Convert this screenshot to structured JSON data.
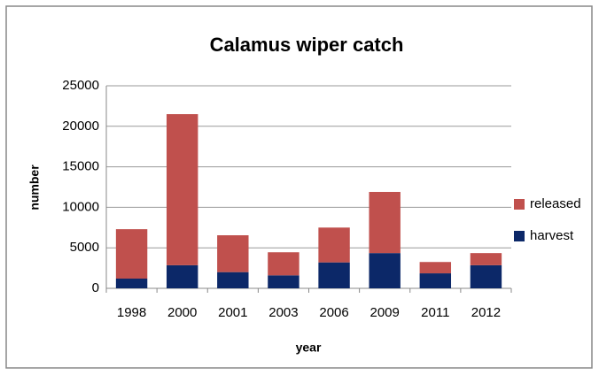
{
  "chart_data": {
    "type": "stacked_bar",
    "title": "Calamus wiper catch",
    "x_label": "year",
    "y_label": "number",
    "categories": [
      "1998",
      "2000",
      "2001",
      "2003",
      "2006",
      "2009",
      "2011",
      "2012"
    ],
    "series": [
      {
        "name": "harvest",
        "color": "#0c2868",
        "values": [
          1200,
          2850,
          2000,
          1600,
          3200,
          4350,
          1850,
          2850
        ]
      },
      {
        "name": "released",
        "color": "#c0504d",
        "values": [
          6100,
          18650,
          4550,
          2850,
          4300,
          7550,
          1400,
          1500
        ]
      }
    ],
    "ylim": [
      0,
      25000
    ],
    "yticks": [
      0,
      5000,
      10000,
      15000,
      20000,
      25000
    ],
    "grid": true,
    "legend": "right"
  }
}
